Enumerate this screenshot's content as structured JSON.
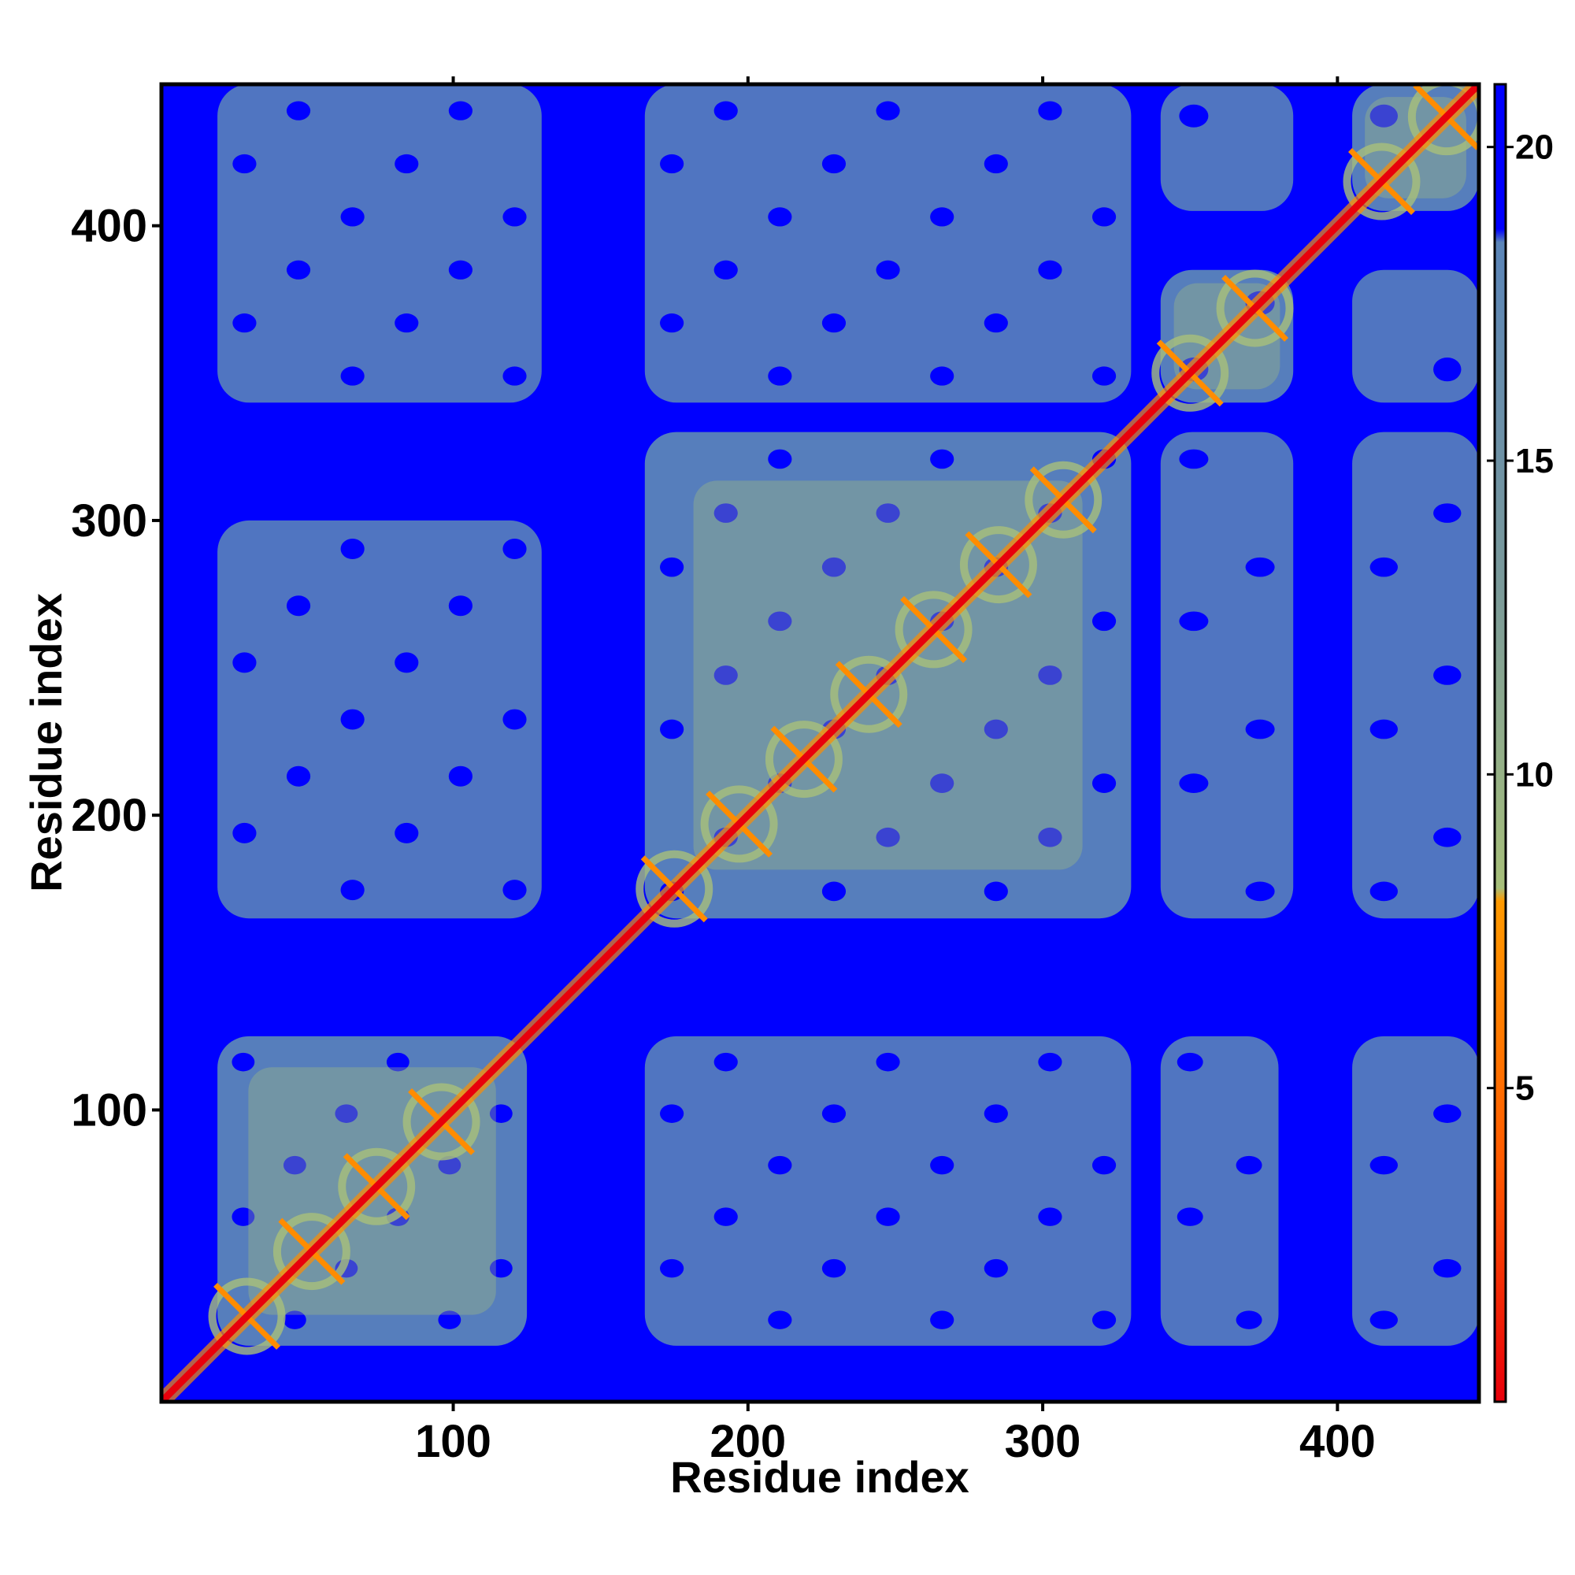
{
  "chart_data": {
    "type": "heatmap",
    "title": "",
    "xlabel": "Residue index",
    "ylabel": "Residue index",
    "xlim": [
      1,
      448
    ],
    "ylim": [
      1,
      448
    ],
    "x_ticks": [
      100,
      200,
      300,
      400
    ],
    "y_ticks": [
      100,
      200,
      300,
      400
    ],
    "x_tick_labels": [
      "100",
      "200",
      "300",
      "400"
    ],
    "y_tick_labels": [
      "100",
      "200",
      "300",
      "400"
    ],
    "value_range": [
      0,
      21
    ],
    "colorbar": {
      "ticks": [
        5,
        10,
        15,
        20
      ],
      "tick_labels": [
        "5",
        "10",
        "15",
        "20"
      ],
      "colors": {
        "low": "#e8000b",
        "mid_low": "#ff8c00",
        "mid": "#a7bf7a",
        "high": "#5b85b8",
        "max": "#0000ff"
      }
    },
    "background_color": "#0000ff",
    "diagonal_color": "#e8000b",
    "domains": [
      {
        "start": 20,
        "end": 125
      },
      {
        "start": 165,
        "end": 330
      },
      {
        "start": 340,
        "end": 385
      },
      {
        "start": 405,
        "end": 448
      }
    ],
    "blocks": [
      {
        "x": [
          20,
          125
        ],
        "y": [
          20,
          125
        ],
        "level": "near"
      },
      {
        "x": [
          165,
          330
        ],
        "y": [
          165,
          330
        ],
        "level": "near"
      },
      {
        "x": [
          340,
          385
        ],
        "y": [
          340,
          385
        ],
        "level": "near"
      },
      {
        "x": [
          405,
          448
        ],
        "y": [
          405,
          448
        ],
        "level": "near"
      },
      {
        "x": [
          20,
          130
        ],
        "y": [
          165,
          300
        ],
        "level": "mid"
      },
      {
        "x": [
          165,
          330
        ],
        "y": [
          20,
          125
        ],
        "level": "mid"
      },
      {
        "x": [
          340,
          380
        ],
        "y": [
          20,
          125
        ],
        "level": "mid"
      },
      {
        "x": [
          405,
          448
        ],
        "y": [
          20,
          125
        ],
        "level": "mid"
      },
      {
        "x": [
          165,
          330
        ],
        "y": [
          340,
          448
        ],
        "level": "mid"
      },
      {
        "x": [
          340,
          385
        ],
        "y": [
          165,
          330
        ],
        "level": "mid"
      },
      {
        "x": [
          405,
          448
        ],
        "y": [
          165,
          330
        ],
        "level": "mid"
      },
      {
        "x": [
          20,
          130
        ],
        "y": [
          340,
          448
        ],
        "level": "mid"
      },
      {
        "x": [
          340,
          385
        ],
        "y": [
          405,
          448
        ],
        "level": "mid"
      },
      {
        "x": [
          405,
          448
        ],
        "y": [
          340,
          385
        ],
        "level": "mid"
      }
    ]
  }
}
